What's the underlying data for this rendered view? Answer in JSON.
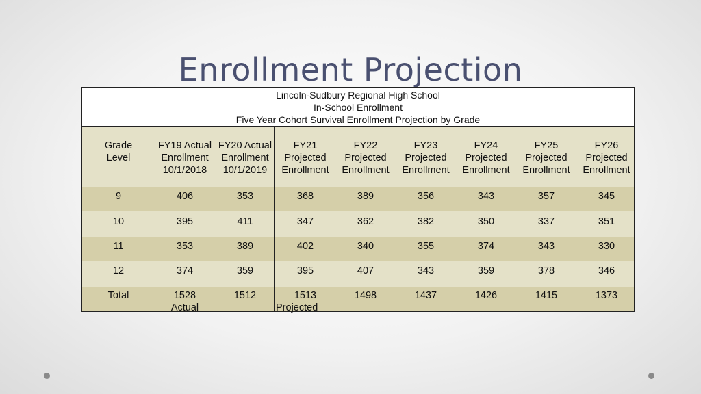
{
  "title": "Enrollment Projection",
  "table": {
    "caption": [
      "Lincoln-Sudbury Regional High School",
      "In-School Enrollment",
      "Five Year Cohort Survival Enrollment Projection by Grade"
    ],
    "columns": [
      [
        "Grade",
        "Level"
      ],
      [
        "FY19 Actual",
        "Enrollment",
        "10/1/2018"
      ],
      [
        "FY20 Actual",
        "Enrollment",
        "10/1/2019"
      ],
      [
        "FY21",
        "Projected",
        "Enrollment"
      ],
      [
        "FY22",
        "Projected",
        "Enrollment"
      ],
      [
        "FY23",
        "Projected",
        "Enrollment"
      ],
      [
        "FY24",
        "Projected",
        "Enrollment"
      ],
      [
        "FY25",
        "Projected",
        "Enrollment"
      ],
      [
        "FY26",
        "Projected",
        "Enrollment"
      ]
    ],
    "rows": [
      [
        "9",
        "406",
        "353",
        "368",
        "389",
        "356",
        "343",
        "357",
        "345"
      ],
      [
        "10",
        "395",
        "411",
        "347",
        "362",
        "382",
        "350",
        "337",
        "351"
      ],
      [
        "11",
        "353",
        "389",
        "402",
        "340",
        "355",
        "374",
        "343",
        "330"
      ],
      [
        "12",
        "374",
        "359",
        "395",
        "407",
        "343",
        "359",
        "378",
        "346"
      ],
      [
        "Total",
        "1528",
        "1512",
        "1513",
        "1498",
        "1437",
        "1426",
        "1415",
        "1373"
      ]
    ],
    "total_notes": {
      "actual": "Actual",
      "projected": "Projected"
    }
  }
}
